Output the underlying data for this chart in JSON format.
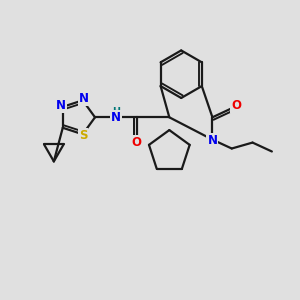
{
  "bg_color": "#e0e0e0",
  "bond_color": "#1a1a1a",
  "bond_width": 1.6,
  "atom_colors": {
    "N": "#0000ee",
    "O": "#ee0000",
    "S": "#ccaa00",
    "H": "#007777",
    "C": "#1a1a1a"
  },
  "font_size": 8.5
}
